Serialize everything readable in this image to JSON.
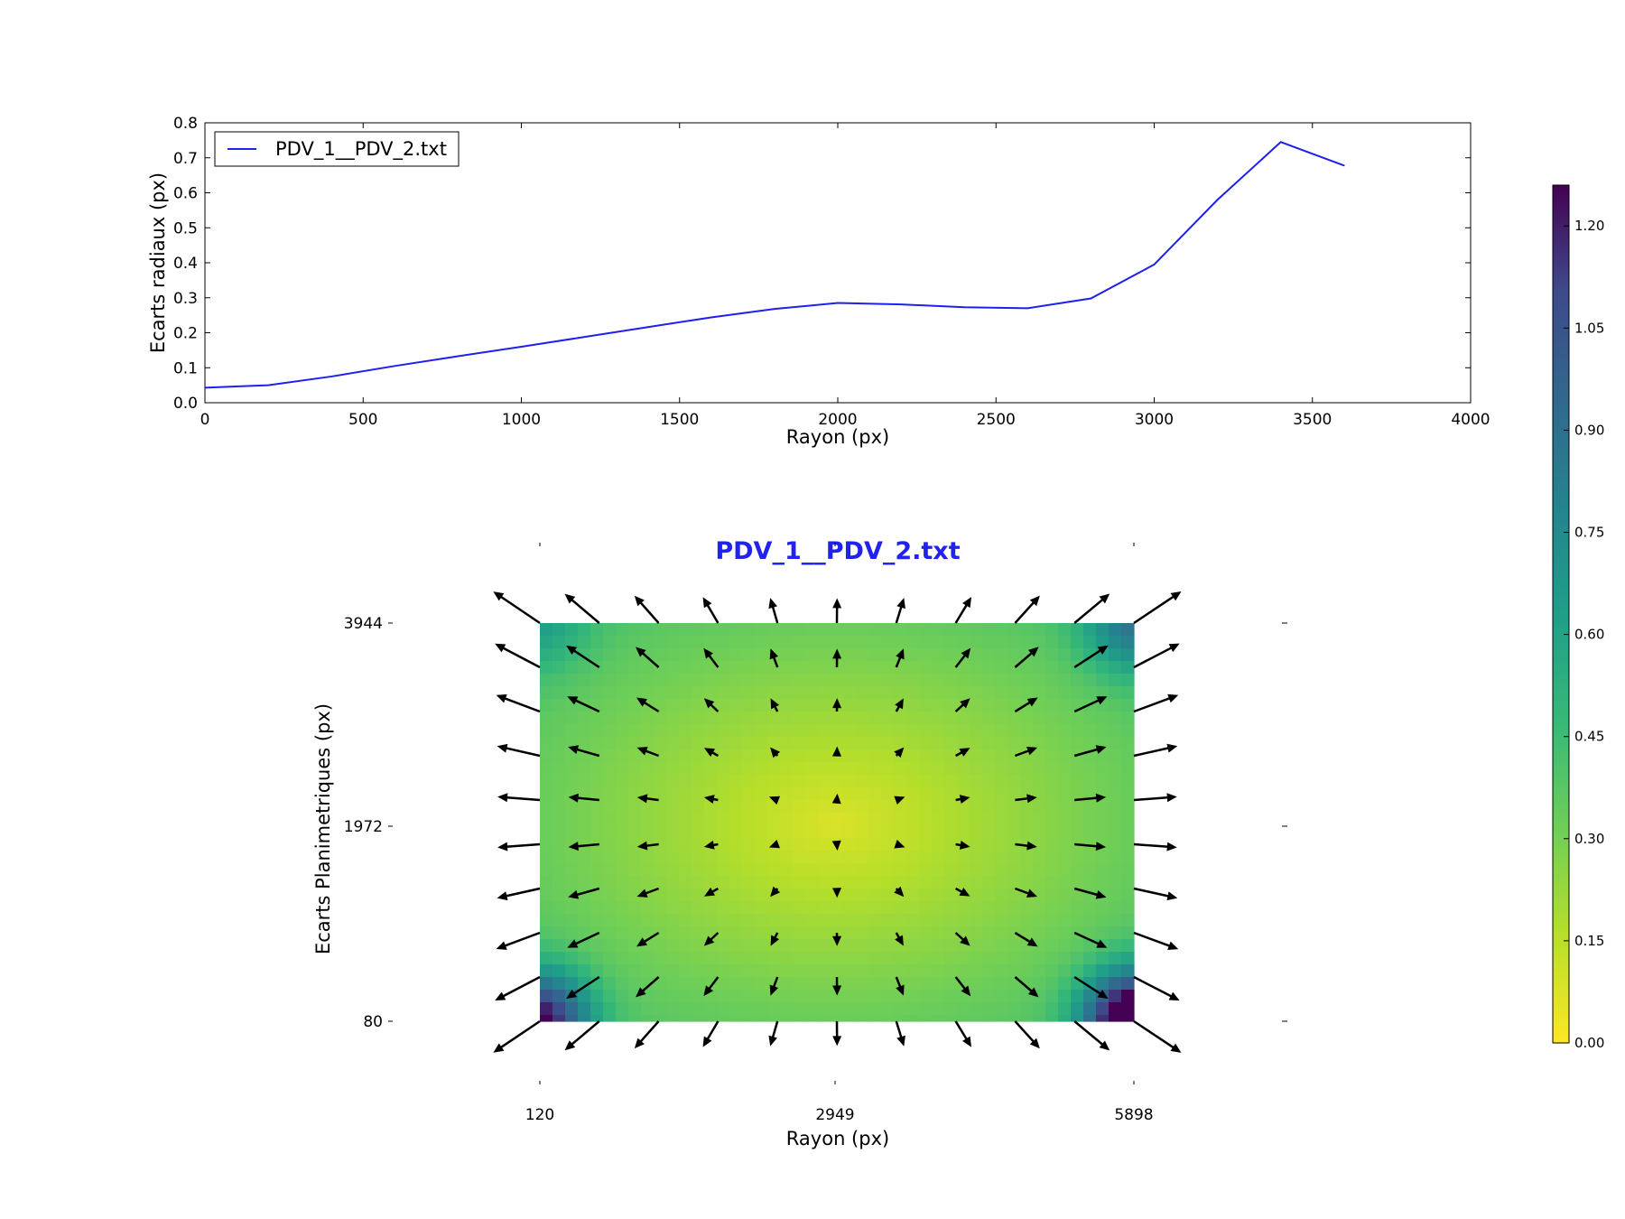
{
  "chart_data": [
    {
      "type": "line",
      "title": "",
      "xlabel": "Rayon (px)",
      "ylabel": "Ecarts radiaux (px)",
      "xlim": [
        0,
        4000
      ],
      "ylim": [
        0.0,
        0.8
      ],
      "xticks": [
        0,
        500,
        1000,
        1500,
        2000,
        2500,
        3000,
        3500,
        4000
      ],
      "xtick_labels": [
        "0",
        "500",
        "1000",
        "1500",
        "2000",
        "2500",
        "3000",
        "3500",
        "4000"
      ],
      "yticks": [
        0.0,
        0.1,
        0.2,
        0.3,
        0.4,
        0.5,
        0.6,
        0.7,
        0.8
      ],
      "ytick_labels": [
        "0.0",
        "0.1",
        "0.2",
        "0.3",
        "0.4",
        "0.5",
        "0.6",
        "0.7",
        "0.8"
      ],
      "legend_position": "top-left",
      "series": [
        {
          "name": "PDV_1__PDV_2.txt",
          "color": "#1f1fee",
          "x": [
            0,
            200,
            400,
            600,
            800,
            1000,
            1200,
            1400,
            1600,
            1800,
            2000,
            2200,
            2400,
            2600,
            2800,
            3000,
            3200,
            3400,
            3600
          ],
          "y": [
            0.043,
            0.05,
            0.075,
            0.105,
            0.133,
            0.16,
            0.188,
            0.216,
            0.244,
            0.268,
            0.285,
            0.281,
            0.273,
            0.27,
            0.298,
            0.395,
            0.58,
            0.745,
            0.678
          ]
        }
      ]
    },
    {
      "type": "quiver",
      "title": "PDV_1__PDV_2.txt",
      "title_color": "#2222ee",
      "xlabel": "Rayon (px)",
      "ylabel": "Ecarts Planimetriques (px)",
      "xlim": [
        120,
        5898
      ],
      "ylim": [
        80,
        3944
      ],
      "xtick_labels": [
        "120",
        "2949",
        "5898"
      ],
      "ytick_labels": [
        "80",
        "1972",
        "3944"
      ],
      "grid_columns": 11,
      "grid_rows": 10,
      "colormap": "viridis_r",
      "colorbar": {
        "range": [
          0.0,
          1.26
        ],
        "ticks": [
          0.0,
          0.15,
          0.3,
          0.45,
          0.6,
          0.75,
          0.9,
          1.05,
          1.2
        ],
        "tick_labels": [
          "0.00",
          "0.15",
          "0.30",
          "0.45",
          "0.60",
          "0.75",
          "0.90",
          "1.05",
          "1.20"
        ]
      }
    }
  ]
}
